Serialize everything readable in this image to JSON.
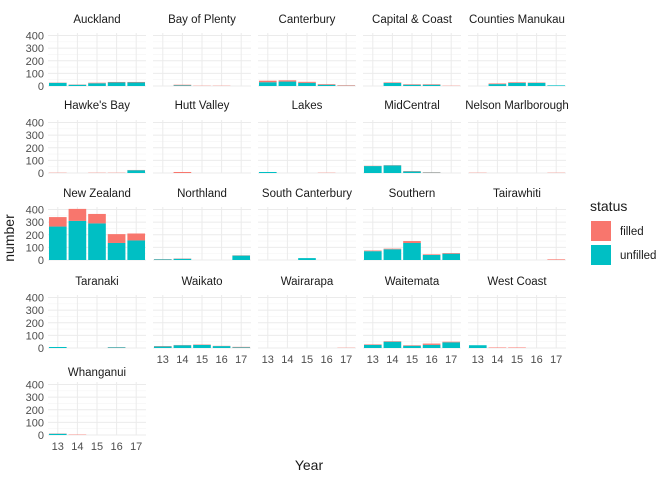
{
  "chart_data": {
    "type": "bar",
    "stacked": true,
    "facet": "region",
    "xlabel": "Year",
    "ylabel": "number",
    "ylim": [
      0,
      420
    ],
    "yticks": [
      0,
      100,
      200,
      300,
      400
    ],
    "categories": [
      "13",
      "14",
      "15",
      "16",
      "17"
    ],
    "legend": {
      "title": "status",
      "position": "right",
      "entries": [
        {
          "name": "filled",
          "color": "#F8766D"
        },
        {
          "name": "unfilled",
          "color": "#00BFC4"
        }
      ]
    },
    "grid": true,
    "panels": [
      {
        "name": "Auckland",
        "filled": [
          2,
          2,
          4,
          4,
          4
        ],
        "unfilled": [
          25,
          10,
          22,
          28,
          28
        ]
      },
      {
        "name": "Bay of Plenty",
        "filled": [
          0,
          5,
          2,
          2,
          0
        ],
        "unfilled": [
          0,
          5,
          0,
          0,
          0
        ]
      },
      {
        "name": "Canterbury",
        "filled": [
          12,
          10,
          8,
          5,
          4
        ],
        "unfilled": [
          30,
          35,
          25,
          10,
          2
        ]
      },
      {
        "name": "Capital & Coast",
        "filled": [
          0,
          4,
          4,
          4,
          2
        ],
        "unfilled": [
          0,
          25,
          10,
          10,
          0
        ]
      },
      {
        "name": "Counties Manukau",
        "filled": [
          0,
          5,
          5,
          3,
          0
        ],
        "unfilled": [
          0,
          15,
          25,
          25,
          5
        ]
      },
      {
        "name": "Hawke's Bay",
        "filled": [
          2,
          0,
          2,
          2,
          2
        ],
        "unfilled": [
          0,
          0,
          0,
          0,
          22
        ]
      },
      {
        "name": "Hutt Valley",
        "filled": [
          0,
          8,
          0,
          0,
          0
        ],
        "unfilled": [
          0,
          0,
          0,
          0,
          0
        ]
      },
      {
        "name": "Lakes",
        "filled": [
          0,
          0,
          0,
          2,
          0
        ],
        "unfilled": [
          8,
          0,
          0,
          0,
          0
        ]
      },
      {
        "name": "MidCentral",
        "filled": [
          2,
          2,
          3,
          3,
          0
        ],
        "unfilled": [
          55,
          60,
          12,
          3,
          0
        ]
      },
      {
        "name": "Nelson Marlborough",
        "filled": [
          2,
          0,
          0,
          0,
          2
        ],
        "unfilled": [
          0,
          0,
          0,
          0,
          0
        ]
      },
      {
        "name": "New Zealand",
        "filled": [
          75,
          95,
          75,
          70,
          55
        ],
        "unfilled": [
          265,
          310,
          290,
          135,
          155
        ]
      },
      {
        "name": "Northland",
        "filled": [
          2,
          2,
          0,
          0,
          2
        ],
        "unfilled": [
          5,
          10,
          0,
          0,
          35
        ]
      },
      {
        "name": "South Canterbury",
        "filled": [
          0,
          0,
          0,
          0,
          0
        ],
        "unfilled": [
          0,
          0,
          15,
          0,
          0
        ]
      },
      {
        "name": "Southern",
        "filled": [
          5,
          5,
          15,
          5,
          5
        ],
        "unfilled": [
          70,
          85,
          135,
          40,
          50
        ]
      },
      {
        "name": "Tairawhiti",
        "filled": [
          0,
          0,
          0,
          0,
          5
        ],
        "unfilled": [
          0,
          0,
          0,
          0,
          0
        ]
      },
      {
        "name": "Taranaki",
        "filled": [
          0,
          0,
          0,
          2,
          0
        ],
        "unfilled": [
          8,
          0,
          0,
          5,
          0
        ]
      },
      {
        "name": "Waikato",
        "filled": [
          3,
          2,
          3,
          2,
          4
        ],
        "unfilled": [
          12,
          22,
          25,
          15,
          5
        ]
      },
      {
        "name": "Wairarapa",
        "filled": [
          0,
          0,
          0,
          0,
          2
        ],
        "unfilled": [
          0,
          0,
          0,
          0,
          0
        ]
      },
      {
        "name": "Waitemata",
        "filled": [
          4,
          4,
          4,
          10,
          5
        ],
        "unfilled": [
          25,
          50,
          18,
          25,
          45
        ]
      },
      {
        "name": "West Coast",
        "filled": [
          0,
          4,
          4,
          0,
          0
        ],
        "unfilled": [
          22,
          0,
          0,
          0,
          0
        ]
      },
      {
        "name": "Whanganui",
        "filled": [
          2,
          3,
          0,
          0,
          0
        ],
        "unfilled": [
          10,
          0,
          0,
          0,
          0
        ]
      }
    ]
  }
}
